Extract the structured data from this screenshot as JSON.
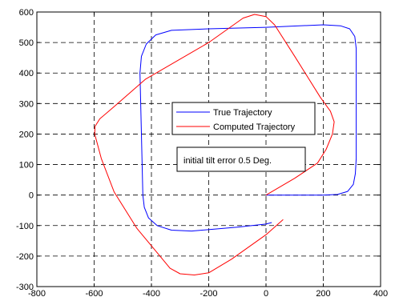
{
  "chart_data": {
    "type": "line",
    "title": "",
    "xlabel": "",
    "ylabel": "",
    "xlim": [
      -800,
      400
    ],
    "ylim": [
      -300,
      600
    ],
    "x_ticks": [
      -800,
      -600,
      -400,
      -200,
      0,
      200,
      400
    ],
    "y_ticks": [
      -300,
      -200,
      -100,
      0,
      100,
      200,
      300,
      400,
      500,
      600
    ],
    "x_tick_labels": [
      "-800",
      "-600",
      "-400",
      "-200",
      "0",
      "200",
      "400"
    ],
    "y_tick_labels": [
      "-300",
      "-200",
      "-100",
      "0",
      "100",
      "200",
      "300",
      "400",
      "500",
      "600"
    ],
    "grid": "dashed",
    "legend_position": "center-right",
    "annotation": "initial tilt error 0.5 Deg.",
    "series": [
      {
        "name": "True Trajectory",
        "color": "#0000ff",
        "points": [
          [
            0,
            0
          ],
          [
            200,
            0
          ],
          [
            250,
            2
          ],
          [
            285,
            12
          ],
          [
            305,
            35
          ],
          [
            312,
            70
          ],
          [
            315,
            120
          ],
          [
            315,
            480
          ],
          [
            310,
            520
          ],
          [
            292,
            545
          ],
          [
            260,
            555
          ],
          [
            200,
            558
          ],
          [
            0,
            550
          ],
          [
            -200,
            545
          ],
          [
            -330,
            540
          ],
          [
            -385,
            525
          ],
          [
            -418,
            495
          ],
          [
            -435,
            455
          ],
          [
            -440,
            400
          ],
          [
            -430,
            0
          ],
          [
            -425,
            -40
          ],
          [
            -410,
            -75
          ],
          [
            -380,
            -100
          ],
          [
            -330,
            -115
          ],
          [
            -260,
            -118
          ],
          [
            -100,
            -105
          ],
          [
            0,
            -95
          ],
          [
            20,
            -90
          ]
        ]
      },
      {
        "name": "Computed Trajectory",
        "color": "#ff0000",
        "points": [
          [
            60,
            -80
          ],
          [
            0,
            -130
          ],
          [
            -120,
            -210
          ],
          [
            -200,
            -255
          ],
          [
            -250,
            -262
          ],
          [
            -300,
            -258
          ],
          [
            -335,
            -240
          ],
          [
            -370,
            -200
          ],
          [
            -450,
            -110
          ],
          [
            -530,
            10
          ],
          [
            -575,
            120
          ],
          [
            -598,
            200
          ],
          [
            -597,
            225
          ],
          [
            -580,
            250
          ],
          [
            -530,
            290
          ],
          [
            -420,
            380
          ],
          [
            -200,
            500
          ],
          [
            -80,
            580
          ],
          [
            -40,
            592
          ],
          [
            0,
            585
          ],
          [
            30,
            558
          ],
          [
            100,
            455
          ],
          [
            190,
            320
          ],
          [
            225,
            275
          ],
          [
            238,
            240
          ],
          [
            232,
            200
          ],
          [
            210,
            150
          ],
          [
            180,
            105
          ],
          [
            100,
            55
          ],
          [
            0,
            0
          ]
        ]
      }
    ]
  }
}
